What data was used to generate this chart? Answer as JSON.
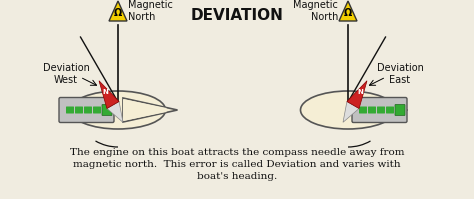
{
  "title": "DEVIATION",
  "title_fontsize": 11,
  "bg_color": "#f0ece0",
  "text_color": "#111111",
  "caption_line1": "The engine on this boat attracts the compass needle away from",
  "caption_line2": "magnetic north.  This error is called Deviation and varies with",
  "caption_line3": "boat's heading.",
  "caption_fontsize": 7.5,
  "left_label_top": "Magnetic\nNorth",
  "left_label_left": "Deviation\nWest",
  "right_label_top": "Magnetic\nNorth",
  "right_label_right": "Deviation\nEast",
  "boat_fill": "#f5eed5",
  "boat_outline": "#555555",
  "engine_fill": "#c0c0c0",
  "engine_outline": "#555555",
  "needle_red": "#cc2222",
  "needle_white": "#dddddd",
  "triangle_fill": "#f5d000",
  "triangle_outline": "#333333",
  "north_line_color": "#111111",
  "deviation_line_color": "#111111",
  "arc_color": "#111111"
}
